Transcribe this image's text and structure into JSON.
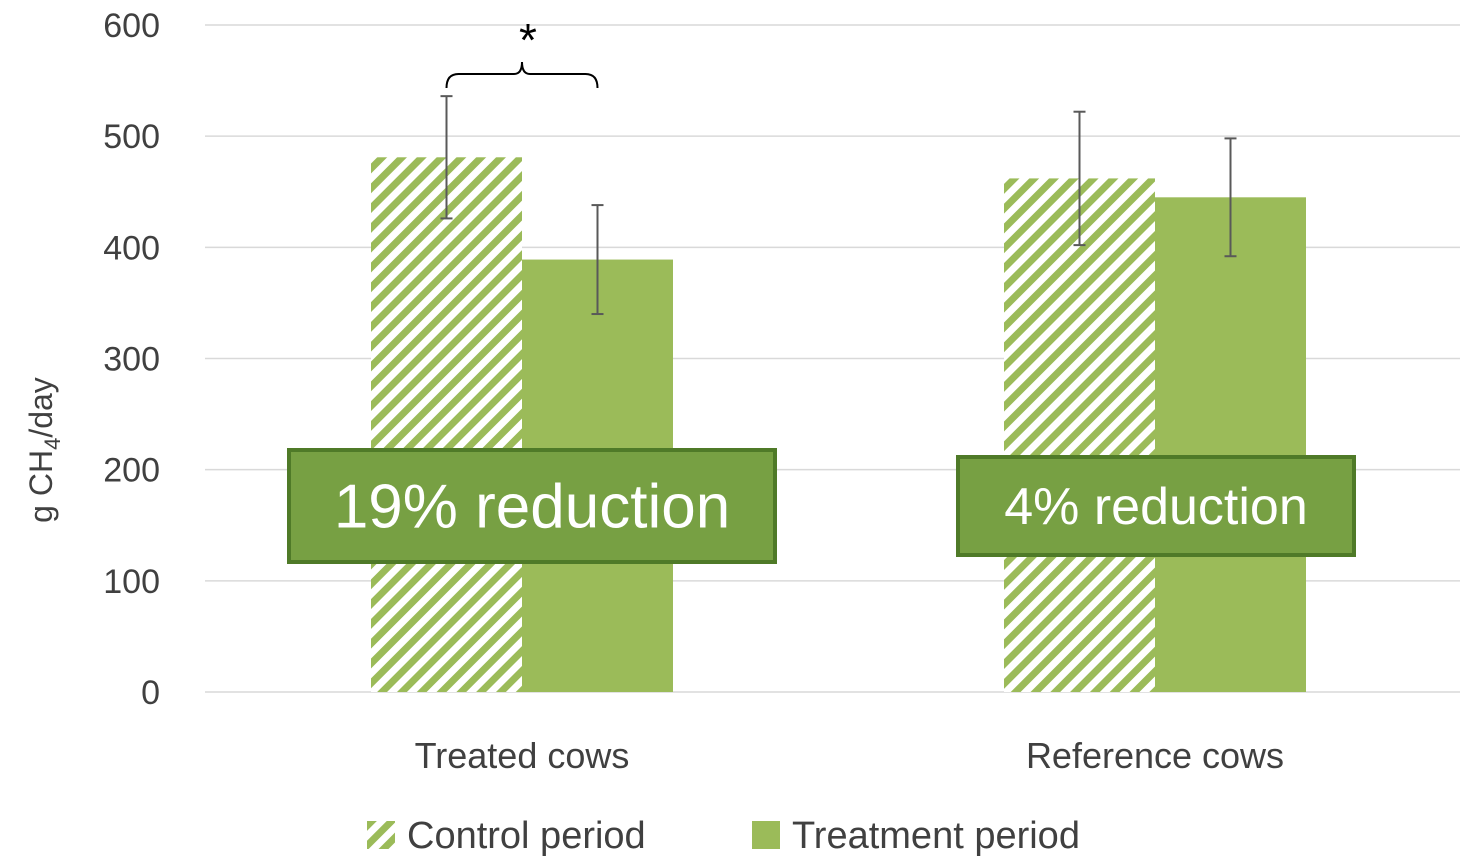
{
  "chart_data": {
    "type": "bar",
    "categories": [
      "Treated cows",
      "Reference cows"
    ],
    "series": [
      {
        "name": "Control period",
        "values": [
          481,
          462
        ],
        "error": [
          55,
          60
        ],
        "pattern": "hatched"
      },
      {
        "name": "Treatment period",
        "values": [
          389,
          445
        ],
        "error": [
          49,
          53
        ],
        "pattern": "solid"
      }
    ],
    "ylabel": {
      "main": "g CH",
      "sub": "4",
      "tail": "/day"
    },
    "ylim": [
      0,
      600
    ],
    "yticks": [
      0,
      100,
      200,
      300,
      400,
      500,
      600
    ],
    "grid": true,
    "legend_position": "bottom",
    "significance": {
      "label": "*",
      "category": "Treated cows"
    },
    "annotations": [
      {
        "text": "19% reduction",
        "category": "Treated cows"
      },
      {
        "text": "4% reduction",
        "category": "Reference cows"
      }
    ],
    "colors": {
      "bar": "#9bbb59",
      "annotation_fill": "#77a043",
      "annotation_border": "#4f7a28",
      "grid": "#d9d9d9",
      "error_bar": "#595959",
      "text": "#404040"
    }
  }
}
